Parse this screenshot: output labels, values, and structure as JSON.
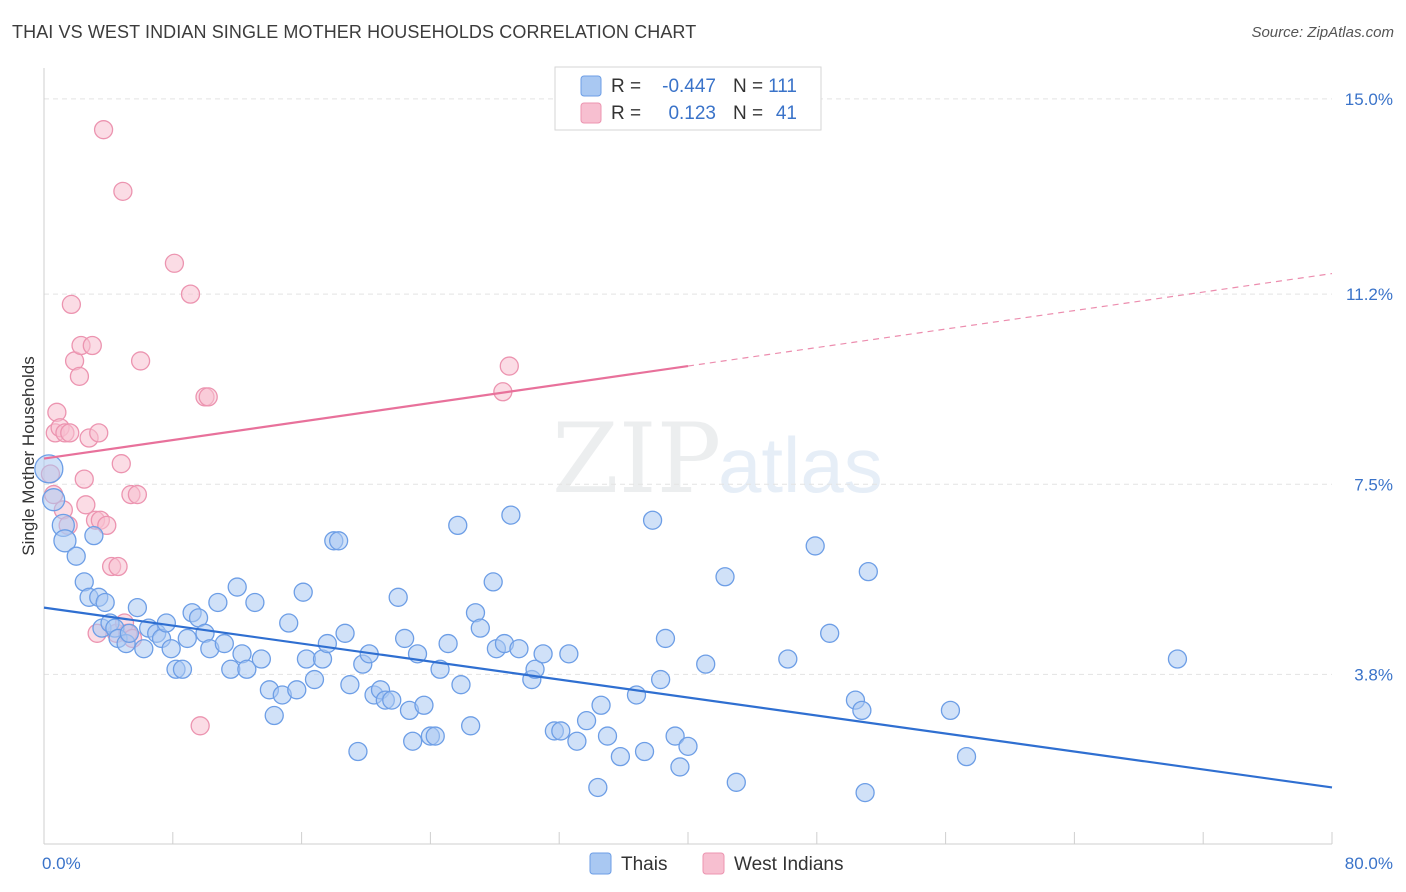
{
  "header": {
    "title": "THAI VS WEST INDIAN SINGLE MOTHER HOUSEHOLDS CORRELATION CHART",
    "source": "Source: ZipAtlas.com"
  },
  "watermark": {
    "zip": "ZIP",
    "atlas": "atlas"
  },
  "colors": {
    "thai_fill": "#a9c8f2",
    "thai_stroke": "#6d9ee6",
    "thai_line": "#2f6fd1",
    "west_fill": "#f7bfd0",
    "west_stroke": "#ec94b0",
    "west_line": "#e8719b",
    "axis_blue": "#3a73c9",
    "grid": "#e3e3e3"
  },
  "legend": {
    "rows": [
      {
        "r_label": "R =",
        "r_value": "-0.447",
        "n_label": "N =",
        "n_value": "111"
      },
      {
        "r_label": "R =",
        "r_value": "0.123",
        "n_label": "N =",
        "n_value": "41"
      }
    ]
  },
  "chart_data": {
    "type": "scatter",
    "title": "THAI VS WEST INDIAN SINGLE MOTHER HOUSEHOLDS CORRELATION CHART",
    "xlabel": "",
    "ylabel": "Single Mother Households",
    "xlim": [
      0,
      80
    ],
    "ylim": [
      0.5,
      15.6
    ],
    "x_ticks": [
      "0.0%",
      "80.0%"
    ],
    "y_ticks": [
      {
        "value": 3.8,
        "label": "3.8%"
      },
      {
        "value": 7.5,
        "label": "7.5%"
      },
      {
        "value": 11.2,
        "label": "11.2%"
      },
      {
        "value": 15.0,
        "label": "15.0%"
      }
    ],
    "grid": true,
    "legend_position": "top-center",
    "series": [
      {
        "name": "Thais",
        "r": -0.447,
        "n": 111,
        "trend": {
          "x0": 0,
          "y0": 5.1,
          "x1": 80,
          "y1": 1.6
        },
        "points": [
          [
            0.3,
            7.8
          ],
          [
            0.6,
            7.2
          ],
          [
            1.2,
            6.7
          ],
          [
            1.3,
            6.4
          ],
          [
            2.0,
            6.1
          ],
          [
            2.5,
            5.6
          ],
          [
            2.8,
            5.3
          ],
          [
            3.1,
            6.5
          ],
          [
            3.4,
            5.3
          ],
          [
            3.6,
            4.7
          ],
          [
            3.8,
            5.2
          ],
          [
            4.1,
            4.8
          ],
          [
            4.4,
            4.7
          ],
          [
            4.6,
            4.5
          ],
          [
            5.1,
            4.4
          ],
          [
            5.3,
            4.6
          ],
          [
            5.8,
            5.1
          ],
          [
            6.2,
            4.3
          ],
          [
            6.5,
            4.7
          ],
          [
            7.0,
            4.6
          ],
          [
            7.3,
            4.5
          ],
          [
            7.6,
            4.8
          ],
          [
            7.9,
            4.3
          ],
          [
            8.2,
            3.9
          ],
          [
            8.6,
            3.9
          ],
          [
            8.9,
            4.5
          ],
          [
            9.2,
            5.0
          ],
          [
            9.6,
            4.9
          ],
          [
            10.0,
            4.6
          ],
          [
            10.3,
            4.3
          ],
          [
            10.8,
            5.2
          ],
          [
            11.2,
            4.4
          ],
          [
            11.6,
            3.9
          ],
          [
            12.0,
            5.5
          ],
          [
            12.3,
            4.2
          ],
          [
            12.6,
            3.9
          ],
          [
            13.1,
            5.2
          ],
          [
            13.5,
            4.1
          ],
          [
            14.0,
            3.5
          ],
          [
            14.3,
            3.0
          ],
          [
            14.8,
            3.4
          ],
          [
            15.2,
            4.8
          ],
          [
            15.7,
            3.5
          ],
          [
            16.1,
            5.4
          ],
          [
            16.3,
            4.1
          ],
          [
            16.8,
            3.7
          ],
          [
            17.3,
            4.1
          ],
          [
            17.6,
            4.4
          ],
          [
            18.0,
            6.4
          ],
          [
            18.3,
            6.4
          ],
          [
            18.7,
            4.6
          ],
          [
            19.0,
            3.6
          ],
          [
            19.5,
            2.3
          ],
          [
            19.8,
            4.0
          ],
          [
            20.2,
            4.2
          ],
          [
            20.5,
            3.4
          ],
          [
            20.9,
            3.5
          ],
          [
            21.2,
            3.3
          ],
          [
            21.6,
            3.3
          ],
          [
            22.0,
            5.3
          ],
          [
            22.4,
            4.5
          ],
          [
            22.7,
            3.1
          ],
          [
            22.9,
            2.5
          ],
          [
            23.2,
            4.2
          ],
          [
            23.6,
            3.2
          ],
          [
            24.0,
            2.6
          ],
          [
            24.3,
            2.6
          ],
          [
            24.6,
            3.9
          ],
          [
            25.1,
            4.4
          ],
          [
            25.7,
            6.7
          ],
          [
            25.9,
            3.6
          ],
          [
            26.5,
            2.8
          ],
          [
            26.8,
            5.0
          ],
          [
            27.1,
            4.7
          ],
          [
            27.9,
            5.6
          ],
          [
            28.1,
            4.3
          ],
          [
            28.6,
            4.4
          ],
          [
            29.0,
            6.9
          ],
          [
            29.5,
            4.3
          ],
          [
            30.3,
            3.7
          ],
          [
            30.5,
            3.9
          ],
          [
            31.0,
            4.2
          ],
          [
            31.7,
            2.7
          ],
          [
            32.1,
            2.7
          ],
          [
            32.6,
            4.2
          ],
          [
            33.1,
            2.5
          ],
          [
            33.7,
            2.9
          ],
          [
            34.4,
            1.6
          ],
          [
            34.6,
            3.2
          ],
          [
            35.0,
            2.6
          ],
          [
            35.8,
            2.2
          ],
          [
            36.8,
            3.4
          ],
          [
            37.3,
            2.3
          ],
          [
            37.8,
            6.8
          ],
          [
            38.3,
            3.7
          ],
          [
            38.6,
            4.5
          ],
          [
            39.2,
            2.6
          ],
          [
            39.5,
            2.0
          ],
          [
            40.0,
            2.4
          ],
          [
            41.1,
            4.0
          ],
          [
            42.3,
            5.7
          ],
          [
            43.0,
            1.7
          ],
          [
            46.2,
            4.1
          ],
          [
            47.9,
            6.3
          ],
          [
            48.8,
            4.6
          ],
          [
            50.4,
            3.3
          ],
          [
            50.8,
            3.1
          ],
          [
            51.2,
            5.8
          ],
          [
            51.0,
            1.5
          ],
          [
            56.3,
            3.1
          ],
          [
            57.3,
            2.2
          ],
          [
            70.4,
            4.1
          ]
        ]
      },
      {
        "name": "West Indians",
        "r": 0.123,
        "n": 41,
        "trend": {
          "x0": 0,
          "y0": 8.0,
          "x1": 40,
          "y1": 9.8,
          "dash_to_x": 80,
          "dash_to_y": 11.6
        },
        "points": [
          [
            0.4,
            7.7
          ],
          [
            0.6,
            7.3
          ],
          [
            0.7,
            8.5
          ],
          [
            0.8,
            8.9
          ],
          [
            1.0,
            8.6
          ],
          [
            1.2,
            7.0
          ],
          [
            1.3,
            8.5
          ],
          [
            1.5,
            6.7
          ],
          [
            1.6,
            8.5
          ],
          [
            1.7,
            11.0
          ],
          [
            1.9,
            9.9
          ],
          [
            2.2,
            9.6
          ],
          [
            2.3,
            10.2
          ],
          [
            2.5,
            7.6
          ],
          [
            2.6,
            7.1
          ],
          [
            2.8,
            8.4
          ],
          [
            3.0,
            10.2
          ],
          [
            3.2,
            6.8
          ],
          [
            3.3,
            4.6
          ],
          [
            3.4,
            8.5
          ],
          [
            3.5,
            6.8
          ],
          [
            3.7,
            14.4
          ],
          [
            3.9,
            6.7
          ],
          [
            4.2,
            5.9
          ],
          [
            4.5,
            4.6
          ],
          [
            4.6,
            5.9
          ],
          [
            4.8,
            7.9
          ],
          [
            4.9,
            13.2
          ],
          [
            5.0,
            4.8
          ],
          [
            5.2,
            4.6
          ],
          [
            5.4,
            7.3
          ],
          [
            5.5,
            4.5
          ],
          [
            5.8,
            7.3
          ],
          [
            6.0,
            9.9
          ],
          [
            8.1,
            11.8
          ],
          [
            9.1,
            11.2
          ],
          [
            9.7,
            2.8
          ],
          [
            10.0,
            9.2
          ],
          [
            10.2,
            9.2
          ],
          [
            28.5,
            9.3
          ],
          [
            28.9,
            9.8
          ]
        ]
      }
    ]
  }
}
